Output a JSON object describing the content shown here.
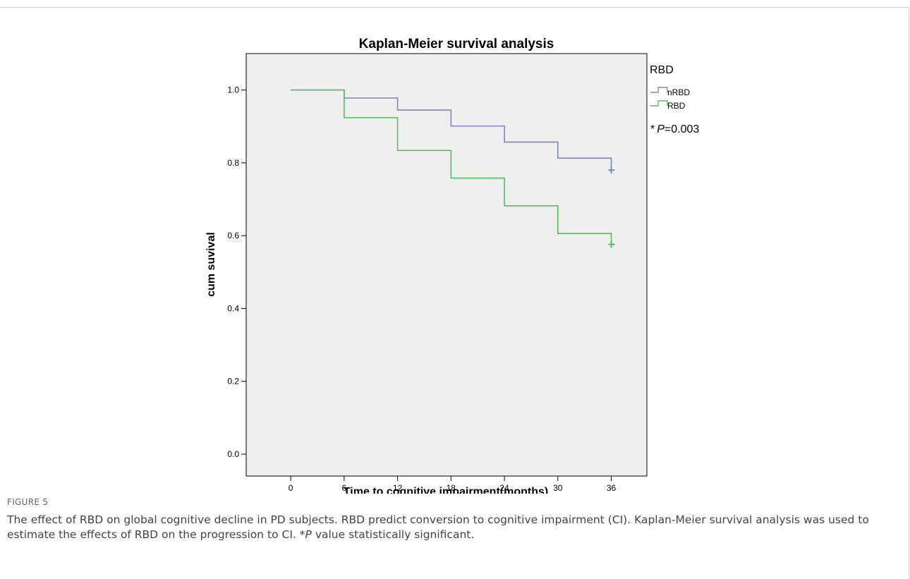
{
  "figure": {
    "label": "FIGURE 5",
    "caption_parts": [
      "The effect of RBD on global cognitive decline in PD subjects. RBD predict conversion to cognitive impairment (CI). Kaplan-Meier survival analysis was used to estimate the effects of RBD on the progression to CI. *",
      "P",
      " value statistically significant."
    ]
  },
  "colors": {
    "nRBD": "#7b86c8",
    "RBD": "#4fbf5f",
    "plot_bg": "#efefef"
  },
  "chart_data": {
    "type": "line",
    "title": "Kaplan-Meier survival analysis",
    "xlabel": "Time to cognitive impairment(months)",
    "ylabel": "cum suvival",
    "xlim": [
      -5,
      40
    ],
    "ylim": [
      -0.06,
      1.1
    ],
    "xticks": [
      0,
      6,
      12,
      18,
      24,
      30,
      36
    ],
    "yticks": [
      0.0,
      0.2,
      0.4,
      0.6,
      0.8,
      1.0
    ],
    "ytick_labels": [
      "0.0",
      "0.2",
      "0.4",
      "0.6",
      "0.8",
      "1.0"
    ],
    "legend_title": "RBD",
    "legend_position": "right",
    "annotation_parts": [
      "*",
      "P",
      "=0.003"
    ],
    "series": [
      {
        "name": "nRBD",
        "step_points": [
          [
            0,
            1.0
          ],
          [
            6,
            0.978
          ],
          [
            12,
            0.945
          ],
          [
            18,
            0.901
          ],
          [
            24,
            0.857
          ],
          [
            30,
            0.813
          ],
          [
            36,
            0.78
          ]
        ],
        "censored": [
          [
            36,
            0.78
          ]
        ]
      },
      {
        "name": "RBD",
        "step_points": [
          [
            0,
            1.0
          ],
          [
            6,
            0.924
          ],
          [
            12,
            0.834
          ],
          [
            18,
            0.758
          ],
          [
            24,
            0.682
          ],
          [
            30,
            0.606
          ],
          [
            36,
            0.576
          ]
        ],
        "censored": [
          [
            36,
            0.576
          ]
        ]
      }
    ]
  }
}
